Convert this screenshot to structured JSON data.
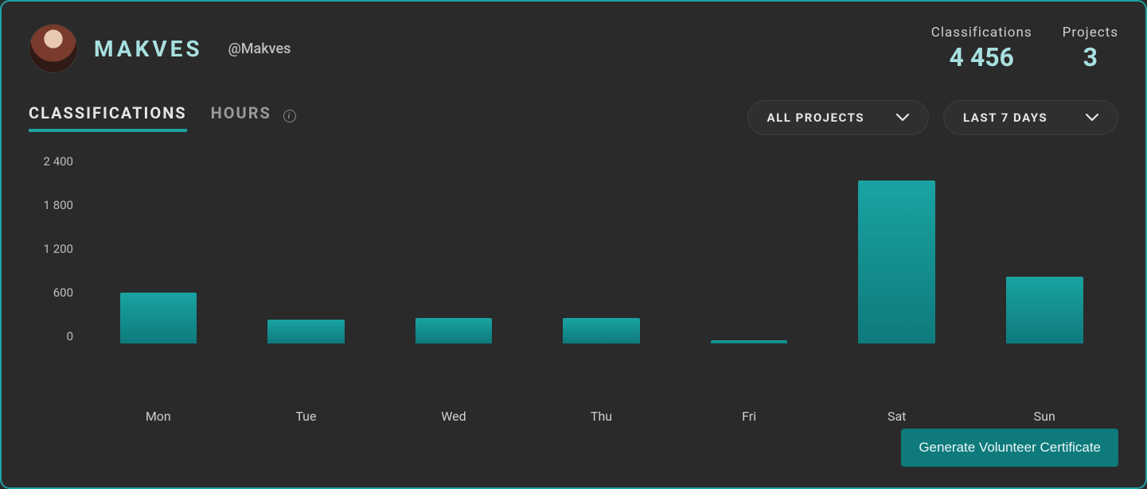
{
  "profile": {
    "display_name": "MAKVES",
    "handle": "@Makves"
  },
  "stats": {
    "classifications": {
      "label": "Classifications",
      "value": "4 456"
    },
    "projects": {
      "label": "Projects",
      "value": "3"
    }
  },
  "tabs": {
    "classifications": "CLASSIFICATIONS",
    "hours": "HOURS",
    "active": "classifications"
  },
  "filters": {
    "projects": "ALL PROJECTS",
    "range": "LAST 7 DAYS"
  },
  "chart": {
    "type": "bar",
    "categories": [
      "Mon",
      "Tue",
      "Wed",
      "Thu",
      "Fri",
      "Sat",
      "Sun"
    ],
    "values": [
      640,
      300,
      320,
      320,
      40,
      2050,
      840
    ],
    "ylim": [
      0,
      2400
    ],
    "ytick_step": 600,
    "y_ticks": [
      "2 400",
      "1 800",
      "1 200",
      "600",
      "0"
    ],
    "bar_color_top": "#1aa3a3",
    "bar_color_bottom": "#0e7a7c",
    "background_color": "#2a2a2a",
    "label_color": "#cfcfcf",
    "label_fontsize": 16,
    "bar_width_ratio": 0.52
  },
  "colors": {
    "accent": "#1fa3a3",
    "accent_light": "#a8e0e0",
    "panel_bg": "#2a2a2a",
    "text": "#d8d8d8",
    "muted": "#9a9a9a",
    "dropdown_bg": "#2f2f2f",
    "dropdown_border": "#3e3e3e",
    "button_bg": "#0e7a7c"
  },
  "buttons": {
    "generate_certificate": "Generate Volunteer Certificate"
  }
}
